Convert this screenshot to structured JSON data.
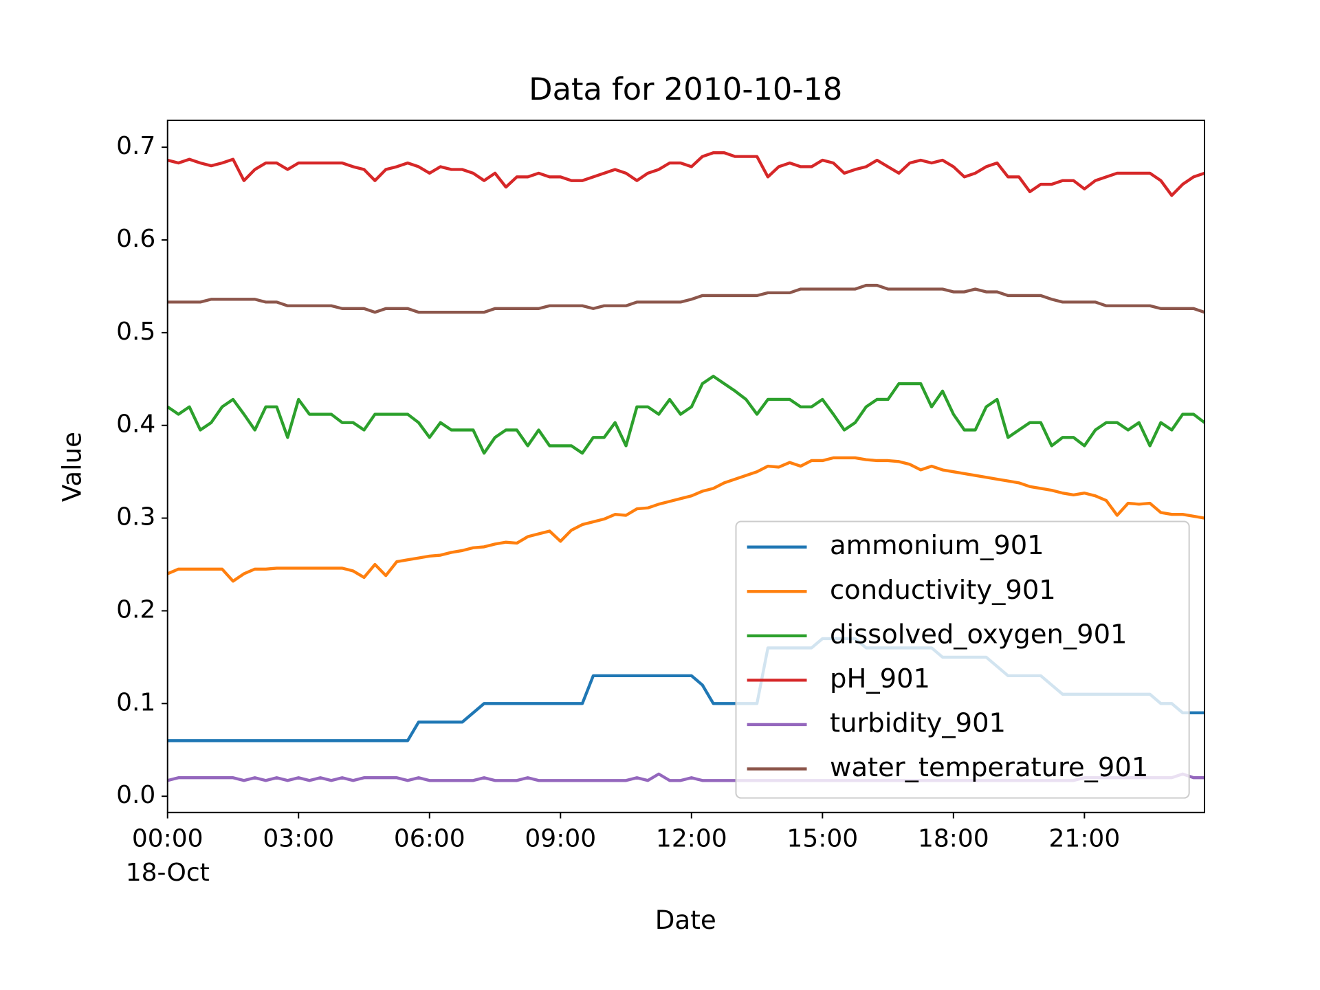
{
  "chart_data": {
    "type": "line",
    "title": "Data for 2010-10-18",
    "xlabel": "Date",
    "ylabel": "Value",
    "x": [
      "00:00",
      "00:15",
      "00:30",
      "00:45",
      "01:00",
      "01:15",
      "01:30",
      "01:45",
      "02:00",
      "02:15",
      "02:30",
      "02:45",
      "03:00",
      "03:15",
      "03:30",
      "03:45",
      "04:00",
      "04:15",
      "04:30",
      "04:45",
      "05:00",
      "05:15",
      "05:30",
      "05:45",
      "06:00",
      "06:15",
      "06:30",
      "06:45",
      "07:00",
      "07:15",
      "07:30",
      "07:45",
      "08:00",
      "08:15",
      "08:30",
      "08:45",
      "09:00",
      "09:15",
      "09:30",
      "09:45",
      "10:00",
      "10:15",
      "10:30",
      "10:45",
      "11:00",
      "11:15",
      "11:30",
      "11:45",
      "12:00",
      "12:15",
      "12:30",
      "12:45",
      "13:00",
      "13:15",
      "13:30",
      "13:45",
      "14:00",
      "14:15",
      "14:30",
      "14:45",
      "15:00",
      "15:15",
      "15:30",
      "15:45",
      "16:00",
      "16:15",
      "16:30",
      "16:45",
      "17:00",
      "17:15",
      "17:30",
      "17:45",
      "18:00",
      "18:15",
      "18:30",
      "18:45",
      "19:00",
      "19:15",
      "19:30",
      "19:45",
      "20:00",
      "20:15",
      "20:30",
      "20:45",
      "21:00",
      "21:15",
      "21:30",
      "21:45",
      "22:00",
      "22:15",
      "22:30",
      "22:45",
      "23:00",
      "23:15",
      "23:30",
      "23:45"
    ],
    "xlim": [
      "00:00",
      "23:45"
    ],
    "xticks": [
      {
        "value": "00:00",
        "label": [
          "00:00",
          "18-Oct"
        ]
      },
      "03:00",
      "06:00",
      "09:00",
      "12:00",
      "15:00",
      "18:00",
      "21:00"
    ],
    "ylim": [
      -0.0175,
      0.729
    ],
    "yticks": [
      {
        "value": 0,
        "label": "0.0"
      },
      0.1,
      0.2,
      0.3,
      0.4,
      0.5,
      0.6,
      0.7
    ],
    "legend": "lower right",
    "grid": false,
    "series": [
      {
        "name": "ammonium_901",
        "color": "#1f77b4",
        "values": [
          0.06,
          0.06,
          0.06,
          0.06,
          0.06,
          0.06,
          0.06,
          0.06,
          0.06,
          0.06,
          0.06,
          0.06,
          0.06,
          0.06,
          0.06,
          0.06,
          0.06,
          0.06,
          0.06,
          0.06,
          0.06,
          0.06,
          0.06,
          0.08,
          0.08,
          0.08,
          0.08,
          0.08,
          0.09,
          0.1,
          0.1,
          0.1,
          0.1,
          0.1,
          0.1,
          0.1,
          0.1,
          0.1,
          0.1,
          0.13,
          0.13,
          0.13,
          0.13,
          0.13,
          0.13,
          0.13,
          0.13,
          0.13,
          0.13,
          0.12,
          0.1,
          0.1,
          0.1,
          0.1,
          0.1,
          0.16,
          0.16,
          0.16,
          0.16,
          0.16,
          0.17,
          0.17,
          0.17,
          0.17,
          0.16,
          0.16,
          0.16,
          0.16,
          0.16,
          0.16,
          0.16,
          0.15,
          0.15,
          0.15,
          0.15,
          0.15,
          0.14,
          0.13,
          0.13,
          0.13,
          0.13,
          0.12,
          0.11,
          0.11,
          0.11,
          0.11,
          0.11,
          0.11,
          0.11,
          0.11,
          0.11,
          0.1,
          0.1,
          0.09,
          0.09,
          0.09
        ]
      },
      {
        "name": "conductivity_901",
        "color": "#ff7f0e",
        "values": [
          0.24,
          0.245,
          0.245,
          0.245,
          0.245,
          0.245,
          0.232,
          0.24,
          0.245,
          0.245,
          0.246,
          0.246,
          0.246,
          0.246,
          0.246,
          0.246,
          0.246,
          0.243,
          0.236,
          0.25,
          0.238,
          0.253,
          0.255,
          0.257,
          0.259,
          0.26,
          0.263,
          0.265,
          0.268,
          0.269,
          0.272,
          0.274,
          0.273,
          0.28,
          0.283,
          0.286,
          0.275,
          0.287,
          0.293,
          0.296,
          0.299,
          0.304,
          0.303,
          0.31,
          0.311,
          0.315,
          0.318,
          0.321,
          0.324,
          0.329,
          0.332,
          0.338,
          0.342,
          0.346,
          0.35,
          0.356,
          0.355,
          0.36,
          0.356,
          0.362,
          0.362,
          0.365,
          0.365,
          0.365,
          0.363,
          0.362,
          0.362,
          0.361,
          0.358,
          0.352,
          0.356,
          0.352,
          0.35,
          0.348,
          0.346,
          0.344,
          0.342,
          0.34,
          0.338,
          0.334,
          0.332,
          0.33,
          0.327,
          0.325,
          0.327,
          0.324,
          0.319,
          0.303,
          0.316,
          0.315,
          0.316,
          0.306,
          0.304,
          0.304,
          0.302,
          0.3
        ]
      },
      {
        "name": "dissolved_oxygen_901",
        "color": "#2ca02c",
        "values": [
          0.42,
          0.412,
          0.42,
          0.395,
          0.403,
          0.42,
          0.428,
          0.412,
          0.395,
          0.42,
          0.42,
          0.387,
          0.428,
          0.412,
          0.412,
          0.412,
          0.403,
          0.403,
          0.395,
          0.412,
          0.412,
          0.412,
          0.412,
          0.403,
          0.387,
          0.403,
          0.395,
          0.395,
          0.395,
          0.37,
          0.387,
          0.395,
          0.395,
          0.378,
          0.395,
          0.378,
          0.378,
          0.378,
          0.37,
          0.387,
          0.387,
          0.403,
          0.378,
          0.42,
          0.42,
          0.412,
          0.428,
          0.412,
          0.42,
          0.445,
          0.453,
          0.445,
          0.437,
          0.428,
          0.412,
          0.428,
          0.428,
          0.428,
          0.42,
          0.42,
          0.428,
          0.412,
          0.395,
          0.403,
          0.42,
          0.428,
          0.428,
          0.445,
          0.445,
          0.445,
          0.42,
          0.437,
          0.412,
          0.395,
          0.395,
          0.42,
          0.428,
          0.387,
          0.395,
          0.403,
          0.403,
          0.378,
          0.387,
          0.387,
          0.378,
          0.395,
          0.403,
          0.403,
          0.395,
          0.403,
          0.378,
          0.403,
          0.395,
          0.412,
          0.412,
          0.403
        ]
      },
      {
        "name": "pH_901",
        "color": "#d62728",
        "values": [
          0.686,
          0.683,
          0.687,
          0.683,
          0.68,
          0.683,
          0.687,
          0.664,
          0.676,
          0.683,
          0.683,
          0.676,
          0.683,
          0.683,
          0.683,
          0.683,
          0.683,
          0.679,
          0.676,
          0.664,
          0.676,
          0.679,
          0.683,
          0.679,
          0.672,
          0.679,
          0.676,
          0.676,
          0.672,
          0.664,
          0.672,
          0.657,
          0.668,
          0.668,
          0.672,
          0.668,
          0.668,
          0.664,
          0.664,
          0.668,
          0.672,
          0.676,
          0.672,
          0.664,
          0.672,
          0.676,
          0.683,
          0.683,
          0.679,
          0.69,
          0.694,
          0.694,
          0.69,
          0.69,
          0.69,
          0.668,
          0.679,
          0.683,
          0.679,
          0.679,
          0.686,
          0.683,
          0.672,
          0.676,
          0.679,
          0.686,
          0.679,
          0.672,
          0.683,
          0.686,
          0.683,
          0.686,
          0.679,
          0.668,
          0.672,
          0.679,
          0.683,
          0.668,
          0.668,
          0.652,
          0.66,
          0.66,
          0.664,
          0.664,
          0.655,
          0.664,
          0.668,
          0.672,
          0.672,
          0.672,
          0.672,
          0.664,
          0.648,
          0.66,
          0.668,
          0.672
        ]
      },
      {
        "name": "turbidity_901",
        "color": "#9467bd",
        "values": [
          0.017,
          0.02,
          0.02,
          0.02,
          0.02,
          0.02,
          0.02,
          0.017,
          0.02,
          0.017,
          0.02,
          0.017,
          0.02,
          0.017,
          0.02,
          0.017,
          0.02,
          0.017,
          0.02,
          0.02,
          0.02,
          0.02,
          0.017,
          0.02,
          0.017,
          0.017,
          0.017,
          0.017,
          0.017,
          0.02,
          0.017,
          0.017,
          0.017,
          0.02,
          0.017,
          0.017,
          0.017,
          0.017,
          0.017,
          0.017,
          0.017,
          0.017,
          0.017,
          0.02,
          0.017,
          0.024,
          0.017,
          0.017,
          0.02,
          0.017,
          0.017,
          0.017,
          0.017,
          0.017,
          0.017,
          0.017,
          0.017,
          0.017,
          0.017,
          0.017,
          0.017,
          0.017,
          0.017,
          0.017,
          0.017,
          0.017,
          0.017,
          0.017,
          0.017,
          0.017,
          0.017,
          0.017,
          0.017,
          0.017,
          0.017,
          0.017,
          0.017,
          0.017,
          0.017,
          0.017,
          0.017,
          0.017,
          0.017,
          0.017,
          0.02,
          0.02,
          0.02,
          0.02,
          0.02,
          0.02,
          0.02,
          0.02,
          0.02,
          0.024,
          0.02,
          0.02
        ]
      },
      {
        "name": "water_temperature_901",
        "color": "#8c564b",
        "values": [
          0.533,
          0.533,
          0.533,
          0.533,
          0.536,
          0.536,
          0.536,
          0.536,
          0.536,
          0.533,
          0.533,
          0.529,
          0.529,
          0.529,
          0.529,
          0.529,
          0.526,
          0.526,
          0.526,
          0.522,
          0.526,
          0.526,
          0.526,
          0.522,
          0.522,
          0.522,
          0.522,
          0.522,
          0.522,
          0.522,
          0.526,
          0.526,
          0.526,
          0.526,
          0.526,
          0.529,
          0.529,
          0.529,
          0.529,
          0.526,
          0.529,
          0.529,
          0.529,
          0.533,
          0.533,
          0.533,
          0.533,
          0.533,
          0.536,
          0.54,
          0.54,
          0.54,
          0.54,
          0.54,
          0.54,
          0.543,
          0.543,
          0.543,
          0.547,
          0.547,
          0.547,
          0.547,
          0.547,
          0.547,
          0.551,
          0.551,
          0.547,
          0.547,
          0.547,
          0.547,
          0.547,
          0.547,
          0.544,
          0.544,
          0.547,
          0.544,
          0.544,
          0.54,
          0.54,
          0.54,
          0.54,
          0.536,
          0.533,
          0.533,
          0.533,
          0.533,
          0.529,
          0.529,
          0.529,
          0.529,
          0.529,
          0.526,
          0.526,
          0.526,
          0.526,
          0.522
        ]
      }
    ]
  }
}
